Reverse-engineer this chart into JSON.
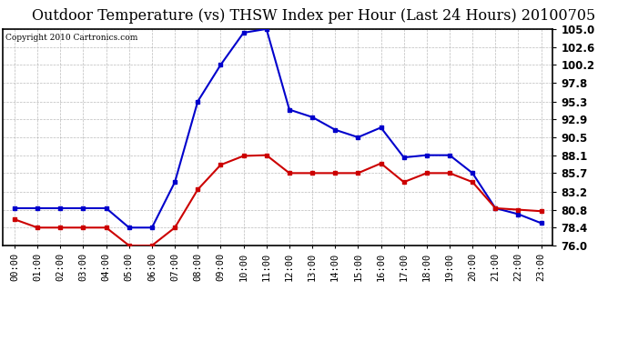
{
  "title": "Outdoor Temperature (vs) THSW Index per Hour (Last 24 Hours) 20100705",
  "copyright": "Copyright 2010 Cartronics.com",
  "hours": [
    0,
    1,
    2,
    3,
    4,
    5,
    6,
    7,
    8,
    9,
    10,
    11,
    12,
    13,
    14,
    15,
    16,
    17,
    18,
    19,
    20,
    21,
    22,
    23
  ],
  "blue_data": [
    81.0,
    81.0,
    81.0,
    81.0,
    81.0,
    78.4,
    78.4,
    84.5,
    95.3,
    100.2,
    104.5,
    105.0,
    94.2,
    93.2,
    91.5,
    90.5,
    91.8,
    87.8,
    88.1,
    88.1,
    85.7,
    81.0,
    80.2,
    79.0
  ],
  "red_data": [
    79.5,
    78.4,
    78.4,
    78.4,
    78.4,
    76.0,
    76.0,
    78.4,
    83.5,
    86.8,
    88.0,
    88.1,
    85.7,
    85.7,
    85.7,
    85.7,
    87.0,
    84.5,
    85.7,
    85.7,
    84.5,
    81.0,
    80.8,
    80.6
  ],
  "blue_color": "#0000CC",
  "red_color": "#CC0000",
  "ylim": [
    76.0,
    105.0
  ],
  "yticks": [
    76.0,
    78.4,
    80.8,
    83.2,
    85.7,
    88.1,
    90.5,
    92.9,
    95.3,
    97.8,
    100.2,
    102.6,
    105.0
  ],
  "background_color": "#ffffff",
  "grid_color": "#aaaaaa",
  "title_fontsize": 11.5,
  "copyright_fontsize": 6.5,
  "tick_fontsize": 7.5,
  "ytick_fontsize": 8.5
}
